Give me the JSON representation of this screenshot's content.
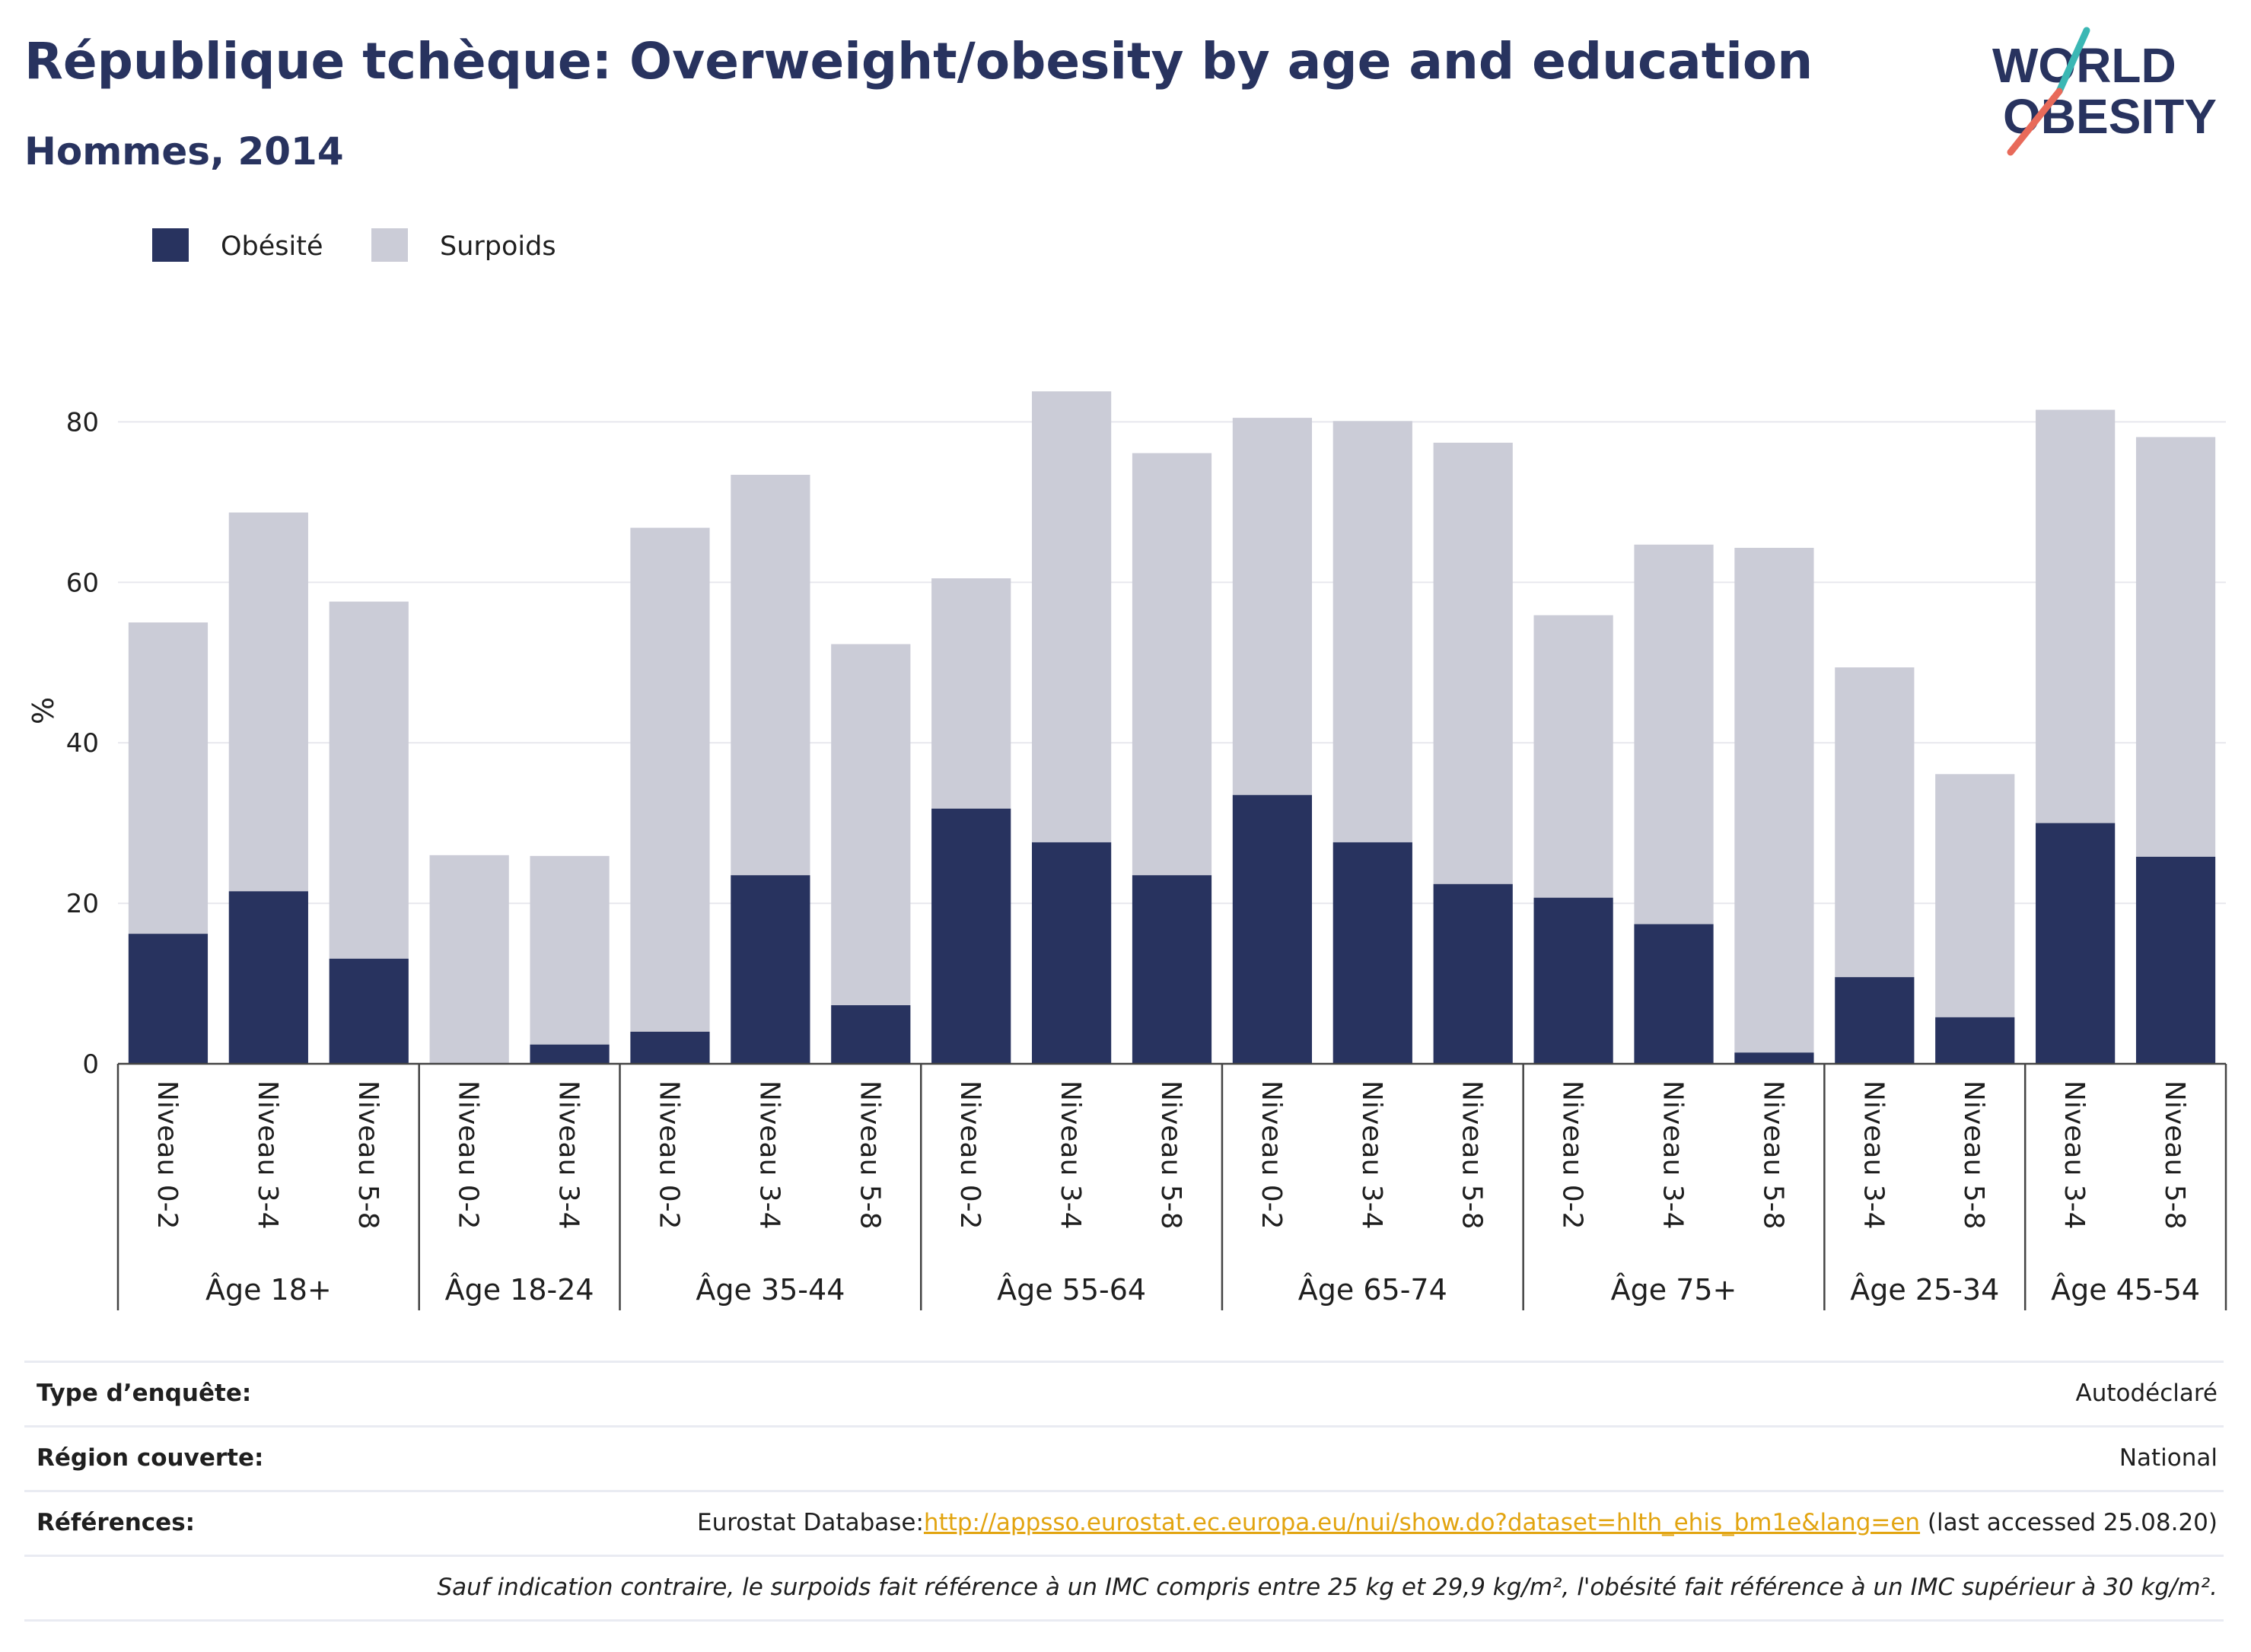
{
  "title": "République tchèque: Overweight/obesity by age and education",
  "subtitle": "Hommes, 2014",
  "logo": {
    "line1": "WORLD",
    "line2": "OBESITY"
  },
  "legend": [
    {
      "label": "Obésité",
      "color": "#28335f"
    },
    {
      "label": "Surpoids",
      "color": "#cbccd7"
    }
  ],
  "chart_data": {
    "type": "bar",
    "stacked": true,
    "ylabel": "%",
    "ylim": [
      0,
      88
    ],
    "yticks": [
      0,
      20,
      40,
      60,
      80
    ],
    "grid": true,
    "legend_position": "top-left",
    "groups": [
      {
        "label": "Âge 18+",
        "categories": [
          "Niveau 0-2",
          "Niveau 3-4",
          "Niveau 5-8"
        ]
      },
      {
        "label": "Âge 18-24",
        "categories": [
          "Niveau 0-2",
          "Niveau 3-4"
        ]
      },
      {
        "label": "Âge 35-44",
        "categories": [
          "Niveau 0-2",
          "Niveau 3-4",
          "Niveau 5-8"
        ]
      },
      {
        "label": "Âge 55-64",
        "categories": [
          "Niveau 0-2",
          "Niveau 3-4",
          "Niveau 5-8"
        ]
      },
      {
        "label": "Âge 65-74",
        "categories": [
          "Niveau 0-2",
          "Niveau 3-4",
          "Niveau 5-8"
        ]
      },
      {
        "label": "Âge 75+",
        "categories": [
          "Niveau 0-2",
          "Niveau 3-4",
          "Niveau 5-8"
        ]
      },
      {
        "label": "Âge 25-34",
        "categories": [
          "Niveau 3-4",
          "Niveau 5-8"
        ]
      },
      {
        "label": "Âge 45-54",
        "categories": [
          "Niveau 3-4",
          "Niveau 5-8"
        ]
      }
    ],
    "series": [
      {
        "name": "Obésité",
        "color": "#28335f",
        "values": [
          16.2,
          21.5,
          13.1,
          0.0,
          2.4,
          4.0,
          23.5,
          7.3,
          31.8,
          27.6,
          23.5,
          33.5,
          27.6,
          22.4,
          20.7,
          17.4,
          1.4,
          10.8,
          5.8,
          30.0,
          25.8
        ]
      },
      {
        "name": "Surpoids",
        "color": "#cbccd7",
        "values": [
          38.8,
          47.2,
          44.5,
          26.0,
          23.5,
          62.8,
          49.9,
          45.0,
          28.7,
          56.2,
          52.6,
          47.0,
          52.5,
          55.0,
          35.2,
          47.3,
          62.9,
          38.6,
          30.3,
          51.5,
          52.3
        ]
      }
    ]
  },
  "info": {
    "survey_label": "Type d’enquête:",
    "survey_value": "Autodéclaré",
    "region_label": "Région couverte:",
    "region_value": "National",
    "refs_label": "Références:",
    "refs_prefix": "Eurostat Database:",
    "refs_link": "http://appsso.eurostat.ec.europa.eu/nui/show.do?dataset=hlth_ehis_bm1e&lang=en",
    "refs_suffix": " (last accessed 25.08.20)",
    "note": "Sauf indication contraire, le surpoids fait référence à un IMC compris entre 25 kg et 29,9 kg/m², l'obésité fait référence à un IMC supérieur à 30 kg/m²."
  }
}
